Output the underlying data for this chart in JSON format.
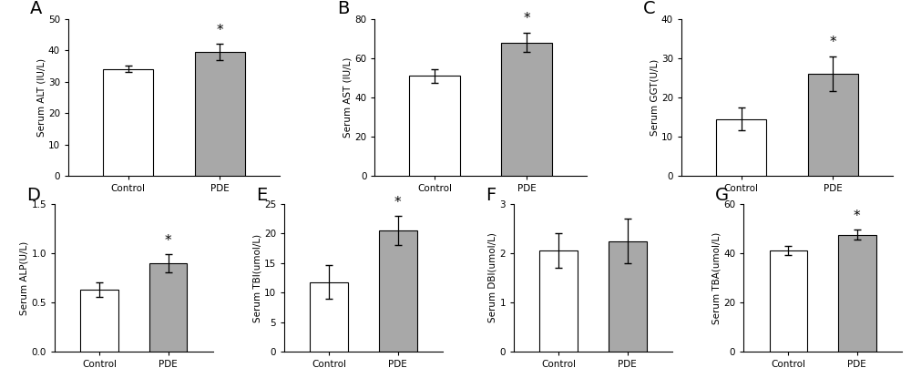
{
  "panels": [
    {
      "label": "A",
      "ylabel": "Serum ALT (IU/L)",
      "ylim": [
        0,
        50
      ],
      "yticks": [
        0,
        10,
        20,
        30,
        40,
        50
      ],
      "control_val": 34,
      "pde_val": 39.5,
      "control_err": 1.0,
      "pde_err": 2.5,
      "significant": true
    },
    {
      "label": "B",
      "ylabel": "Serum AST (IU/L)",
      "ylim": [
        0,
        80
      ],
      "yticks": [
        0,
        20,
        40,
        60,
        80
      ],
      "control_val": 51,
      "pde_val": 68,
      "control_err": 3.5,
      "pde_err": 5.0,
      "significant": true
    },
    {
      "label": "C",
      "ylabel": "Serum GGT(U/L)",
      "ylim": [
        0,
        40
      ],
      "yticks": [
        0,
        10,
        20,
        30,
        40
      ],
      "control_val": 14.5,
      "pde_val": 26,
      "control_err": 3.0,
      "pde_err": 4.5,
      "significant": true
    },
    {
      "label": "D",
      "ylabel": "Serum ALP(U/L)",
      "ylim": [
        0.0,
        1.5
      ],
      "yticks": [
        0.0,
        0.5,
        1.0,
        1.5
      ],
      "control_val": 0.63,
      "pde_val": 0.9,
      "control_err": 0.07,
      "pde_err": 0.09,
      "significant": true
    },
    {
      "label": "E",
      "ylabel": "Serum TBI(umol/L)",
      "ylim": [
        0,
        25
      ],
      "yticks": [
        0,
        5,
        10,
        15,
        20,
        25
      ],
      "control_val": 11.8,
      "pde_val": 20.5,
      "control_err": 2.8,
      "pde_err": 2.5,
      "significant": true
    },
    {
      "label": "F",
      "ylabel": "Serum DBI(umol/L)",
      "ylim": [
        0,
        3
      ],
      "yticks": [
        0,
        1,
        2,
        3
      ],
      "control_val": 2.05,
      "pde_val": 2.25,
      "control_err": 0.35,
      "pde_err": 0.45,
      "significant": false
    },
    {
      "label": "G",
      "ylabel": "Serum TBA(umol/L)",
      "ylim": [
        0,
        60
      ],
      "yticks": [
        0,
        20,
        40,
        60
      ],
      "control_val": 41.0,
      "pde_val": 47.5,
      "control_err": 1.8,
      "pde_err": 2.0,
      "significant": true
    }
  ],
  "control_color": "#ffffff",
  "pde_color": "#a8a8a8",
  "bar_edge_color": "#000000",
  "bar_width": 0.55,
  "background_color": "#ffffff",
  "xtick_labels": [
    "Control",
    "PDE"
  ],
  "fontsize_ylabel": 7.5,
  "fontsize_tick": 7.5,
  "fontsize_panel_label": 14,
  "fontsize_star": 11
}
